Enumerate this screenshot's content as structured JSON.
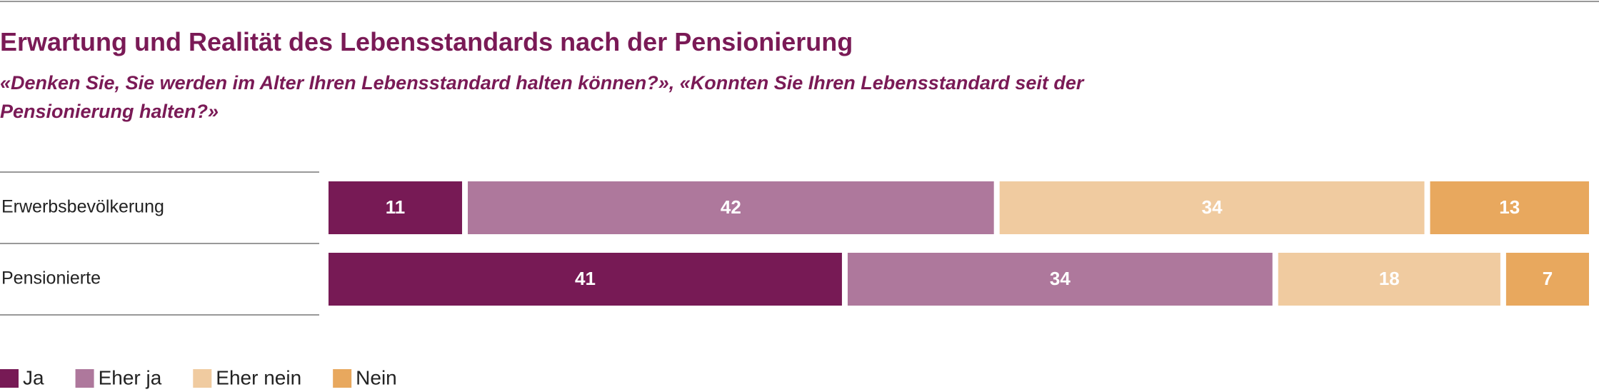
{
  "chart_data": {
    "type": "stacked-bar",
    "orientation": "horizontal",
    "title": "Erwartung und Realität des Lebensstandards nach der Pensionierung",
    "subtitle": "«Denken Sie, Sie werden im Alter Ihren Lebensstandard halten können?», «Konnten Sie Ihren Lebensstandard seit der Pensionierung halten?»",
    "categories": [
      "Erwerbsbevölkerung",
      "Pensionierte"
    ],
    "series": [
      {
        "name": "Ja",
        "color": "#771a55",
        "values": [
          11,
          41
        ]
      },
      {
        "name": "Eher ja",
        "color": "#ae789c",
        "values": [
          42,
          34
        ]
      },
      {
        "name": "Eher nein",
        "color": "#f0cba0",
        "values": [
          34,
          18
        ]
      },
      {
        "name": "Nein",
        "color": "#e8a85e",
        "values": [
          13,
          7
        ]
      }
    ],
    "legend": "bottom-left"
  }
}
